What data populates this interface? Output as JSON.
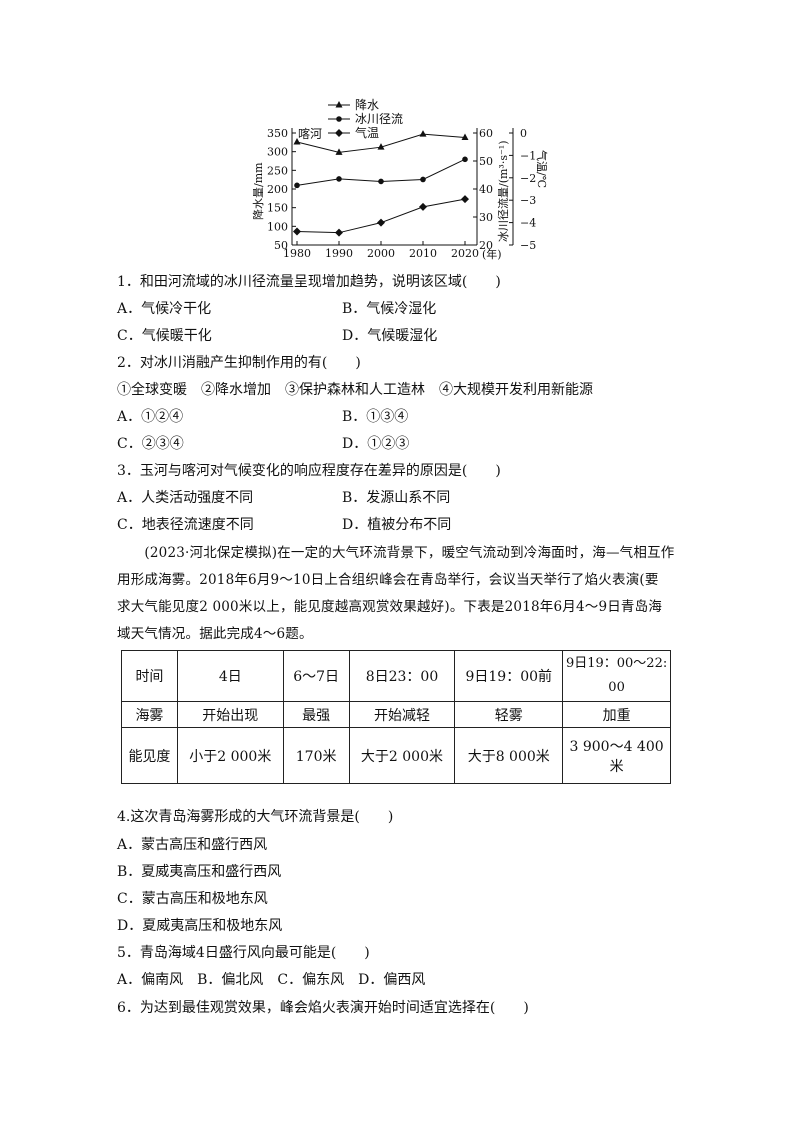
{
  "chart_data": {
    "type": "line",
    "x": [
      1980,
      1990,
      2000,
      2010,
      2020
    ],
    "xlabel": "(年)",
    "region_label": "喀河",
    "series": [
      {
        "name": "降水",
        "axis": "left",
        "marker": "triangle",
        "values": [
          326,
          298,
          312,
          347,
          338
        ]
      },
      {
        "name": "冰川径流",
        "axis": "middle",
        "marker": "circle",
        "values": [
          41.3,
          43.6,
          42.7,
          43.4,
          50.6
        ]
      },
      {
        "name": "气温",
        "axis": "right",
        "marker": "diamond",
        "values": [
          -4.4,
          -4.45,
          -4.0,
          -3.3,
          -2.95
        ]
      }
    ],
    "axes": {
      "left": {
        "label": "降水量/mm",
        "range": [
          50,
          350
        ],
        "ticks": [
          "50",
          "100",
          "150",
          "200",
          "250",
          "300",
          "350"
        ]
      },
      "middle": {
        "label": "冰川径流量/(m³·s⁻¹)",
        "range": [
          20,
          60
        ],
        "ticks": [
          "20",
          "30",
          "40",
          "50",
          "60"
        ]
      },
      "right": {
        "label": "气温/℃",
        "range": [
          -5,
          0
        ],
        "ticks": [
          "−5",
          "−4",
          "−3",
          "−2",
          "−1",
          "0"
        ]
      }
    },
    "xticks": [
      "1980",
      "1990",
      "2000",
      "2010",
      "2020"
    ],
    "legend_position": "top",
    "grid": false
  },
  "q1": {
    "stem": "1．和田河流域的冰川径流量呈现增加趋势，说明该区域(　　)",
    "A": "A．气候冷干化",
    "B": "B．气候冷湿化",
    "C": "C．气候暖干化",
    "D": "D．气候暖湿化"
  },
  "q2": {
    "stem": "2．对冰川消融产生抑制作用的有(　　)",
    "items": "①全球变暖　②降水增加　③保护森林和人工造林　④大规模开发利用新能源",
    "A": "A．①②④",
    "B": "B．①③④",
    "C": "C．②③④",
    "D": "D．①②③"
  },
  "q3": {
    "stem": "3．玉河与喀河对气候变化的响应程度存在差异的原因是(　　)",
    "A": "A．人类活动强度不同",
    "B": "B．发源山系不同",
    "C": "C．地表径流速度不同",
    "D": "D．植被分布不同"
  },
  "passage": [
    "　　(2023·河北保定模拟)在一定的大气环流背景下，暖空气流动到冷海面时，海—气相互作",
    "用形成海雾。2018年6月9～10日上合组织峰会在青岛举行，会议当天举行了焰火表演(要",
    "求大气能见度2 000米以上，能见度越高观赏效果越好)。下表是2018年6月4～9日青岛海",
    "域天气情况。据此完成4～6题。"
  ],
  "table": {
    "rows": [
      [
        "时间",
        "4日",
        "6～7日",
        "8日23：00",
        "9日19：00前",
        "9日19：00～22:00"
      ],
      [
        "海雾",
        "开始出现",
        "最强",
        "开始减轻",
        "轻雾",
        "加重"
      ],
      [
        "能见度",
        "小于2 000米",
        "170米",
        "大于2 000米",
        "大于8 000米",
        "3 900～4 400米"
      ]
    ]
  },
  "q4": {
    "stem": "4.这次青岛海雾形成的大气环流背景是(　　)",
    "A": "A．蒙古高压和盛行西风",
    "B": "B．夏威夷高压和盛行西风",
    "C": "C．蒙古高压和极地东风",
    "D": "D．夏威夷高压和极地东风"
  },
  "q5": {
    "stem": "5．青岛海域4日盛行风向最可能是(　　)",
    "options": "A．偏南风　B．偏北风　C．偏东风　D．偏西风"
  },
  "q6": {
    "stem": "6．为达到最佳观赏效果，峰会焰火表演开始时间适宜选择在(　　)"
  }
}
